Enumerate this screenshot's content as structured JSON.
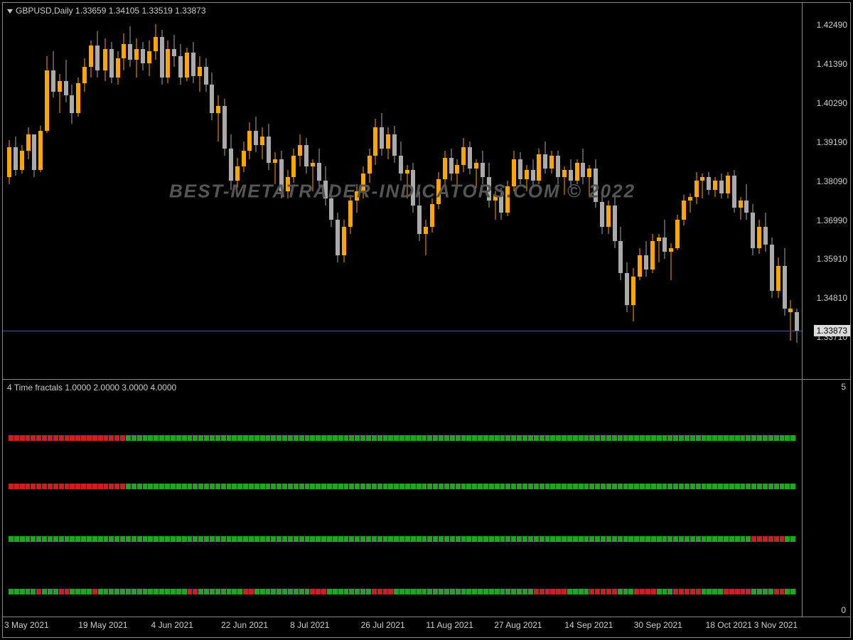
{
  "chart": {
    "symbol": "GBPUSD",
    "timeframe": "Daily",
    "ohlc": {
      "open": "1.33659",
      "high": "1.34105",
      "low": "1.33519",
      "close": "1.33873"
    },
    "header_text": "GBPUSD,Daily  1.33659 1.34105 1.33519 1.33873",
    "watermark": "BEST-METATRADER-INDICATORS.COM © 2022",
    "background_color": "#000000",
    "border_color": "#888888",
    "text_color": "#cccccc",
    "bull_color": "#ffa500",
    "bear_color": "#aaaaaa",
    "price_line_color": "#5a4a8a",
    "current_price": "1.33873",
    "secondary_price": "1.33710",
    "y_axis": {
      "min": 1.326,
      "max": 1.43,
      "labels": [
        "1.42490",
        "1.41390",
        "1.40290",
        "1.39190",
        "1.38090",
        "1.36990",
        "1.35910",
        "1.34810",
        "1.33873",
        "1.33710"
      ],
      "positions": [
        1.4249,
        1.4139,
        1.4029,
        1.3919,
        1.3809,
        1.3699,
        1.3591,
        1.3481,
        1.33873,
        1.3371
      ]
    },
    "x_axis": {
      "labels": [
        "3 May 2021",
        "19 May 2021",
        "4 Jun 2021",
        "22 Jun 2021",
        "8 Jul 2021",
        "26 Jul 2021",
        "11 Aug 2021",
        "27 Aug 2021",
        "14 Sep 2021",
        "30 Sep 2021",
        "18 Oct 2021",
        "3 Nov 2021"
      ],
      "positions": [
        0.032,
        0.122,
        0.21,
        0.302,
        0.385,
        0.478,
        0.563,
        0.65,
        0.74,
        0.828,
        0.918,
        1.0
      ]
    },
    "candles": [
      {
        "x": 0.0,
        "o": 1.382,
        "h": 1.3925,
        "l": 1.38,
        "c": 1.3905,
        "d": 1
      },
      {
        "x": 0.008,
        "o": 1.3905,
        "h": 1.3935,
        "l": 1.3825,
        "c": 1.384,
        "d": -1
      },
      {
        "x": 0.016,
        "o": 1.384,
        "h": 1.391,
        "l": 1.383,
        "c": 1.3895,
        "d": 1
      },
      {
        "x": 0.024,
        "o": 1.3895,
        "h": 1.396,
        "l": 1.387,
        "c": 1.394,
        "d": 1
      },
      {
        "x": 0.032,
        "o": 1.394,
        "h": 1.392,
        "l": 1.382,
        "c": 1.384,
        "d": -1
      },
      {
        "x": 0.04,
        "o": 1.384,
        "h": 1.3965,
        "l": 1.3835,
        "c": 1.395,
        "d": 1
      },
      {
        "x": 0.048,
        "o": 1.395,
        "h": 1.416,
        "l": 1.3945,
        "c": 1.412,
        "d": 1
      },
      {
        "x": 0.056,
        "o": 1.412,
        "h": 1.4175,
        "l": 1.4045,
        "c": 1.406,
        "d": -1
      },
      {
        "x": 0.064,
        "o": 1.406,
        "h": 1.411,
        "l": 1.4,
        "c": 1.409,
        "d": 1
      },
      {
        "x": 0.072,
        "o": 1.409,
        "h": 1.415,
        "l": 1.403,
        "c": 1.405,
        "d": -1
      },
      {
        "x": 0.08,
        "o": 1.405,
        "h": 1.408,
        "l": 1.397,
        "c": 1.4,
        "d": -1
      },
      {
        "x": 0.088,
        "o": 1.4,
        "h": 1.41,
        "l": 1.399,
        "c": 1.4085,
        "d": 1
      },
      {
        "x": 0.096,
        "o": 1.4085,
        "h": 1.4155,
        "l": 1.406,
        "c": 1.413,
        "d": 1
      },
      {
        "x": 0.104,
        "o": 1.413,
        "h": 1.4205,
        "l": 1.41,
        "c": 1.419,
        "d": 1
      },
      {
        "x": 0.112,
        "o": 1.419,
        "h": 1.423,
        "l": 1.41,
        "c": 1.412,
        "d": -1
      },
      {
        "x": 0.122,
        "o": 1.412,
        "h": 1.421,
        "l": 1.409,
        "c": 1.418,
        "d": 1
      },
      {
        "x": 0.13,
        "o": 1.418,
        "h": 1.42,
        "l": 1.4085,
        "c": 1.41,
        "d": -1
      },
      {
        "x": 0.138,
        "o": 1.41,
        "h": 1.4175,
        "l": 1.408,
        "c": 1.4155,
        "d": 1
      },
      {
        "x": 0.146,
        "o": 1.4155,
        "h": 1.4225,
        "l": 1.412,
        "c": 1.4195,
        "d": 1
      },
      {
        "x": 0.154,
        "o": 1.4195,
        "h": 1.4245,
        "l": 1.413,
        "c": 1.415,
        "d": -1
      },
      {
        "x": 0.162,
        "o": 1.415,
        "h": 1.421,
        "l": 1.41,
        "c": 1.418,
        "d": 1
      },
      {
        "x": 0.17,
        "o": 1.418,
        "h": 1.42,
        "l": 1.412,
        "c": 1.414,
        "d": -1
      },
      {
        "x": 0.178,
        "o": 1.414,
        "h": 1.4205,
        "l": 1.4105,
        "c": 1.4175,
        "d": 1
      },
      {
        "x": 0.186,
        "o": 1.4175,
        "h": 1.425,
        "l": 1.415,
        "c": 1.4215,
        "d": 1
      },
      {
        "x": 0.194,
        "o": 1.4215,
        "h": 1.4235,
        "l": 1.408,
        "c": 1.41,
        "d": -1
      },
      {
        "x": 0.202,
        "o": 1.41,
        "h": 1.4205,
        "l": 1.4085,
        "c": 1.418,
        "d": 1
      },
      {
        "x": 0.21,
        "o": 1.418,
        "h": 1.422,
        "l": 1.413,
        "c": 1.416,
        "d": -1
      },
      {
        "x": 0.218,
        "o": 1.416,
        "h": 1.4195,
        "l": 1.408,
        "c": 1.41,
        "d": -1
      },
      {
        "x": 0.226,
        "o": 1.41,
        "h": 1.4185,
        "l": 1.409,
        "c": 1.417,
        "d": 1
      },
      {
        "x": 0.234,
        "o": 1.417,
        "h": 1.42,
        "l": 1.4085,
        "c": 1.4105,
        "d": -1
      },
      {
        "x": 0.242,
        "o": 1.4105,
        "h": 1.416,
        "l": 1.406,
        "c": 1.413,
        "d": 1
      },
      {
        "x": 0.25,
        "o": 1.413,
        "h": 1.4155,
        "l": 1.406,
        "c": 1.408,
        "d": -1
      },
      {
        "x": 0.258,
        "o": 1.408,
        "h": 1.4115,
        "l": 1.398,
        "c": 1.4,
        "d": -1
      },
      {
        "x": 0.266,
        "o": 1.4,
        "h": 1.405,
        "l": 1.392,
        "c": 1.402,
        "d": 1
      },
      {
        "x": 0.274,
        "o": 1.402,
        "h": 1.404,
        "l": 1.388,
        "c": 1.39,
        "d": -1
      },
      {
        "x": 0.282,
        "o": 1.39,
        "h": 1.394,
        "l": 1.3785,
        "c": 1.381,
        "d": -1
      },
      {
        "x": 0.29,
        "o": 1.381,
        "h": 1.3875,
        "l": 1.379,
        "c": 1.385,
        "d": 1
      },
      {
        "x": 0.298,
        "o": 1.385,
        "h": 1.392,
        "l": 1.3835,
        "c": 1.3895,
        "d": 1
      },
      {
        "x": 0.306,
        "o": 1.3895,
        "h": 1.3975,
        "l": 1.387,
        "c": 1.395,
        "d": 1
      },
      {
        "x": 0.314,
        "o": 1.395,
        "h": 1.399,
        "l": 1.389,
        "c": 1.391,
        "d": -1
      },
      {
        "x": 0.322,
        "o": 1.391,
        "h": 1.396,
        "l": 1.387,
        "c": 1.3935,
        "d": 1
      },
      {
        "x": 0.33,
        "o": 1.3935,
        "h": 1.397,
        "l": 1.384,
        "c": 1.386,
        "d": -1
      },
      {
        "x": 0.338,
        "o": 1.386,
        "h": 1.389,
        "l": 1.38,
        "c": 1.387,
        "d": 1
      },
      {
        "x": 0.346,
        "o": 1.387,
        "h": 1.3895,
        "l": 1.376,
        "c": 1.378,
        "d": -1
      },
      {
        "x": 0.354,
        "o": 1.378,
        "h": 1.384,
        "l": 1.376,
        "c": 1.382,
        "d": 1
      },
      {
        "x": 0.362,
        "o": 1.382,
        "h": 1.39,
        "l": 1.3805,
        "c": 1.388,
        "d": 1
      },
      {
        "x": 0.37,
        "o": 1.388,
        "h": 1.394,
        "l": 1.385,
        "c": 1.391,
        "d": 1
      },
      {
        "x": 0.378,
        "o": 1.391,
        "h": 1.393,
        "l": 1.383,
        "c": 1.385,
        "d": -1
      },
      {
        "x": 0.386,
        "o": 1.385,
        "h": 1.387,
        "l": 1.378,
        "c": 1.386,
        "d": 1
      },
      {
        "x": 0.394,
        "o": 1.386,
        "h": 1.39,
        "l": 1.379,
        "c": 1.381,
        "d": -1
      },
      {
        "x": 0.402,
        "o": 1.381,
        "h": 1.385,
        "l": 1.374,
        "c": 1.376,
        "d": -1
      },
      {
        "x": 0.41,
        "o": 1.376,
        "h": 1.38,
        "l": 1.368,
        "c": 1.37,
        "d": -1
      },
      {
        "x": 0.418,
        "o": 1.37,
        "h": 1.372,
        "l": 1.358,
        "c": 1.36,
        "d": -1
      },
      {
        "x": 0.426,
        "o": 1.36,
        "h": 1.37,
        "l": 1.358,
        "c": 1.368,
        "d": 1
      },
      {
        "x": 0.434,
        "o": 1.368,
        "h": 1.377,
        "l": 1.366,
        "c": 1.3755,
        "d": 1
      },
      {
        "x": 0.442,
        "o": 1.3755,
        "h": 1.38,
        "l": 1.372,
        "c": 1.378,
        "d": 1
      },
      {
        "x": 0.45,
        "o": 1.378,
        "h": 1.385,
        "l": 1.376,
        "c": 1.383,
        "d": 1
      },
      {
        "x": 0.458,
        "o": 1.383,
        "h": 1.39,
        "l": 1.3805,
        "c": 1.388,
        "d": 1
      },
      {
        "x": 0.466,
        "o": 1.388,
        "h": 1.3985,
        "l": 1.3855,
        "c": 1.396,
        "d": 1
      },
      {
        "x": 0.474,
        "o": 1.396,
        "h": 1.4,
        "l": 1.388,
        "c": 1.39,
        "d": -1
      },
      {
        "x": 0.482,
        "o": 1.39,
        "h": 1.396,
        "l": 1.387,
        "c": 1.394,
        "d": 1
      },
      {
        "x": 0.49,
        "o": 1.394,
        "h": 1.3965,
        "l": 1.386,
        "c": 1.388,
        "d": -1
      },
      {
        "x": 0.498,
        "o": 1.388,
        "h": 1.392,
        "l": 1.381,
        "c": 1.383,
        "d": -1
      },
      {
        "x": 0.506,
        "o": 1.383,
        "h": 1.3855,
        "l": 1.376,
        "c": 1.384,
        "d": 1
      },
      {
        "x": 0.514,
        "o": 1.384,
        "h": 1.386,
        "l": 1.372,
        "c": 1.374,
        "d": -1
      },
      {
        "x": 0.522,
        "o": 1.374,
        "h": 1.378,
        "l": 1.364,
        "c": 1.366,
        "d": -1
      },
      {
        "x": 0.53,
        "o": 1.366,
        "h": 1.37,
        "l": 1.36,
        "c": 1.368,
        "d": 1
      },
      {
        "x": 0.538,
        "o": 1.368,
        "h": 1.376,
        "l": 1.3665,
        "c": 1.3745,
        "d": 1
      },
      {
        "x": 0.546,
        "o": 1.3745,
        "h": 1.3835,
        "l": 1.373,
        "c": 1.3815,
        "d": 1
      },
      {
        "x": 0.554,
        "o": 1.3815,
        "h": 1.3895,
        "l": 1.3785,
        "c": 1.3875,
        "d": 1
      },
      {
        "x": 0.562,
        "o": 1.3875,
        "h": 1.39,
        "l": 1.381,
        "c": 1.383,
        "d": -1
      },
      {
        "x": 0.57,
        "o": 1.383,
        "h": 1.387,
        "l": 1.379,
        "c": 1.3855,
        "d": 1
      },
      {
        "x": 0.578,
        "o": 1.3855,
        "h": 1.393,
        "l": 1.3835,
        "c": 1.3905,
        "d": 1
      },
      {
        "x": 0.586,
        "o": 1.3905,
        "h": 1.392,
        "l": 1.3828,
        "c": 1.3845,
        "d": -1
      },
      {
        "x": 0.594,
        "o": 1.3845,
        "h": 1.387,
        "l": 1.379,
        "c": 1.386,
        "d": 1
      },
      {
        "x": 0.602,
        "o": 1.386,
        "h": 1.3895,
        "l": 1.38,
        "c": 1.382,
        "d": -1
      },
      {
        "x": 0.61,
        "o": 1.382,
        "h": 1.386,
        "l": 1.3735,
        "c": 1.3755,
        "d": -1
      },
      {
        "x": 0.618,
        "o": 1.3755,
        "h": 1.378,
        "l": 1.37,
        "c": 1.3768,
        "d": 1
      },
      {
        "x": 0.626,
        "o": 1.3768,
        "h": 1.379,
        "l": 1.37,
        "c": 1.372,
        "d": -1
      },
      {
        "x": 0.634,
        "o": 1.372,
        "h": 1.381,
        "l": 1.371,
        "c": 1.3795,
        "d": 1
      },
      {
        "x": 0.642,
        "o": 1.3795,
        "h": 1.3895,
        "l": 1.378,
        "c": 1.387,
        "d": 1
      },
      {
        "x": 0.65,
        "o": 1.387,
        "h": 1.389,
        "l": 1.38,
        "c": 1.3815,
        "d": -1
      },
      {
        "x": 0.658,
        "o": 1.3815,
        "h": 1.3855,
        "l": 1.378,
        "c": 1.384,
        "d": 1
      },
      {
        "x": 0.666,
        "o": 1.384,
        "h": 1.387,
        "l": 1.379,
        "c": 1.381,
        "d": -1
      },
      {
        "x": 0.674,
        "o": 1.381,
        "h": 1.39,
        "l": 1.38,
        "c": 1.3885,
        "d": 1
      },
      {
        "x": 0.682,
        "o": 1.3885,
        "h": 1.392,
        "l": 1.383,
        "c": 1.3845,
        "d": -1
      },
      {
        "x": 0.69,
        "o": 1.3845,
        "h": 1.3895,
        "l": 1.383,
        "c": 1.388,
        "d": 1
      },
      {
        "x": 0.698,
        "o": 1.388,
        "h": 1.3895,
        "l": 1.38,
        "c": 1.382,
        "d": -1
      },
      {
        "x": 0.706,
        "o": 1.382,
        "h": 1.385,
        "l": 1.377,
        "c": 1.384,
        "d": 1
      },
      {
        "x": 0.714,
        "o": 1.384,
        "h": 1.387,
        "l": 1.379,
        "c": 1.381,
        "d": -1
      },
      {
        "x": 0.722,
        "o": 1.381,
        "h": 1.387,
        "l": 1.38,
        "c": 1.386,
        "d": 1
      },
      {
        "x": 0.73,
        "o": 1.386,
        "h": 1.39,
        "l": 1.38,
        "c": 1.382,
        "d": -1
      },
      {
        "x": 0.738,
        "o": 1.382,
        "h": 1.3855,
        "l": 1.377,
        "c": 1.3845,
        "d": 1
      },
      {
        "x": 0.746,
        "o": 1.3845,
        "h": 1.387,
        "l": 1.3735,
        "c": 1.375,
        "d": -1
      },
      {
        "x": 0.754,
        "o": 1.375,
        "h": 1.377,
        "l": 1.366,
        "c": 1.368,
        "d": -1
      },
      {
        "x": 0.762,
        "o": 1.368,
        "h": 1.3755,
        "l": 1.366,
        "c": 1.374,
        "d": 1
      },
      {
        "x": 0.77,
        "o": 1.374,
        "h": 1.3765,
        "l": 1.362,
        "c": 1.364,
        "d": -1
      },
      {
        "x": 0.778,
        "o": 1.364,
        "h": 1.368,
        "l": 1.353,
        "c": 1.355,
        "d": -1
      },
      {
        "x": 0.786,
        "o": 1.355,
        "h": 1.358,
        "l": 1.344,
        "c": 1.346,
        "d": -1
      },
      {
        "x": 0.794,
        "o": 1.346,
        "h": 1.3565,
        "l": 1.3415,
        "c": 1.354,
        "d": 1
      },
      {
        "x": 0.802,
        "o": 1.354,
        "h": 1.362,
        "l": 1.353,
        "c": 1.36,
        "d": 1
      },
      {
        "x": 0.81,
        "o": 1.36,
        "h": 1.364,
        "l": 1.354,
        "c": 1.356,
        "d": -1
      },
      {
        "x": 0.818,
        "o": 1.356,
        "h": 1.366,
        "l": 1.355,
        "c": 1.364,
        "d": 1
      },
      {
        "x": 0.826,
        "o": 1.364,
        "h": 1.366,
        "l": 1.358,
        "c": 1.365,
        "d": 1
      },
      {
        "x": 0.834,
        "o": 1.365,
        "h": 1.37,
        "l": 1.359,
        "c": 1.361,
        "d": -1
      },
      {
        "x": 0.842,
        "o": 1.361,
        "h": 1.3635,
        "l": 1.353,
        "c": 1.362,
        "d": 1
      },
      {
        "x": 0.85,
        "o": 1.362,
        "h": 1.3715,
        "l": 1.3615,
        "c": 1.37,
        "d": 1
      },
      {
        "x": 0.858,
        "o": 1.37,
        "h": 1.377,
        "l": 1.3685,
        "c": 1.3755,
        "d": 1
      },
      {
        "x": 0.866,
        "o": 1.3755,
        "h": 1.3775,
        "l": 1.372,
        "c": 1.3765,
        "d": 1
      },
      {
        "x": 0.874,
        "o": 1.3765,
        "h": 1.3835,
        "l": 1.3745,
        "c": 1.381,
        "d": 1
      },
      {
        "x": 0.882,
        "o": 1.381,
        "h": 1.383,
        "l": 1.376,
        "c": 1.382,
        "d": 1
      },
      {
        "x": 0.89,
        "o": 1.382,
        "h": 1.3835,
        "l": 1.377,
        "c": 1.3785,
        "d": -1
      },
      {
        "x": 0.898,
        "o": 1.3785,
        "h": 1.382,
        "l": 1.3765,
        "c": 1.381,
        "d": 1
      },
      {
        "x": 0.906,
        "o": 1.381,
        "h": 1.383,
        "l": 1.376,
        "c": 1.3775,
        "d": -1
      },
      {
        "x": 0.914,
        "o": 1.3775,
        "h": 1.3835,
        "l": 1.376,
        "c": 1.3825,
        "d": 1
      },
      {
        "x": 0.922,
        "o": 1.3825,
        "h": 1.384,
        "l": 1.372,
        "c": 1.3735,
        "d": -1
      },
      {
        "x": 0.93,
        "o": 1.3735,
        "h": 1.3765,
        "l": 1.37,
        "c": 1.3755,
        "d": 1
      },
      {
        "x": 0.938,
        "o": 1.3755,
        "h": 1.38,
        "l": 1.37,
        "c": 1.372,
        "d": -1
      },
      {
        "x": 0.946,
        "o": 1.372,
        "h": 1.3745,
        "l": 1.36,
        "c": 1.362,
        "d": -1
      },
      {
        "x": 0.954,
        "o": 1.362,
        "h": 1.37,
        "l": 1.3605,
        "c": 1.368,
        "d": 1
      },
      {
        "x": 0.962,
        "o": 1.368,
        "h": 1.372,
        "l": 1.361,
        "c": 1.363,
        "d": -1
      },
      {
        "x": 0.97,
        "o": 1.363,
        "h": 1.365,
        "l": 1.348,
        "c": 1.35,
        "d": -1
      },
      {
        "x": 0.978,
        "o": 1.35,
        "h": 1.3595,
        "l": 1.348,
        "c": 1.357,
        "d": 1
      },
      {
        "x": 0.986,
        "o": 1.357,
        "h": 1.362,
        "l": 1.343,
        "c": 1.345,
        "d": -1
      },
      {
        "x": 0.994,
        "o": 1.345,
        "h": 1.3475,
        "l": 1.336,
        "c": 1.344,
        "d": 1
      },
      {
        "x": 1.002,
        "o": 1.344,
        "h": 1.345,
        "l": 1.3355,
        "c": 1.3387,
        "d": -1
      }
    ]
  },
  "indicator": {
    "name": "4 Time fractals",
    "params": "1.0000 2.0000 3.0000 4.0000",
    "header_text": "4 Time fractals 1.0000 2.0000 3.0000 4.0000",
    "y_max_label": "5",
    "y_min_label": "0",
    "green_color": "#1fa81f",
    "red_color": "#cc1f1f",
    "rows": [
      {
        "top": 0.18,
        "cells": "RRRRRRRRRRRRRRRRRRRRRGGGGGGGGGGGGGGGGGGGGGGGGGGGGGGGGGGGGGGGGGGGGGGGGGGGGGGGGGGGGGGGGGGGGGGGGGGGGGGGGGGGGGGGGGGGGGGGGGGGGGGGGGGGGGGGGGGGGGGGG"
      },
      {
        "top": 0.38,
        "cells": "RRRRRRRRRRRRRRRRRRRRRGGGGGGGGGGGGGGGGGGGGGGGGGGGGGGGGGGGGGGGGGGGGGGGGGGGGGGGGGGGGGGGGGGGGGGGGGGGGGGGGGGGGGGGGGGGGGGGGGGGGGGGGGGGGGGGGGGGGGGGG"
      },
      {
        "top": 0.6,
        "cells": "GGGGGGGGGGGGGGGGGGGGGGGGGGGGGGGGGGGGGGGGGGGGGGGGGGGGGGGGGGGGGGGGGGGGGGGGGGGGGGGGGGGGGGGGGGGGGGGGGGGGGGGGGGGGGGGGGGGGGGGGGGGGGGGGGGGGGRRRRRRGG"
      },
      {
        "top": 0.82,
        "cells": "GGGGGRGGGRRGGGGRGGGGGGGGGGGGGGGGRRGGGGGGGGRRGGGGGGGGGGRRRGGGGGGGGRRRRGGGGGGGGGGGGGGGGGGGGGGGGGRRRRRRGGGGRRRRRGGGRRRRGGGRRRRRGGGGRRRRRGGGGRRGG"
      }
    ]
  }
}
